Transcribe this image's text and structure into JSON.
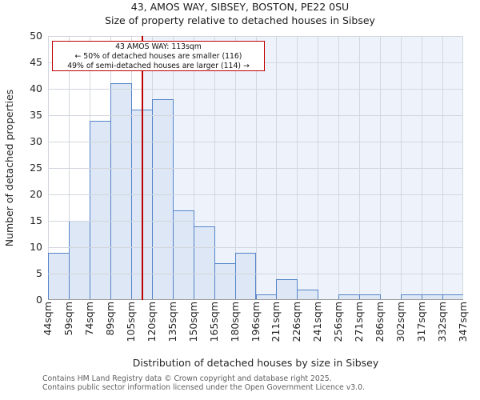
{
  "page": {
    "title": "43, AMOS WAY, SIBSEY, BOSTON, PE22 0SU",
    "subtitle": "Size of property relative to detached houses in Sibsey",
    "footer_line1": "Contains HM Land Registry data © Crown copyright and database right 2025.",
    "footer_line2": "Contains public sector information licensed under the Open Government Licence v3.0."
  },
  "annotation": {
    "line1": "43 AMOS WAY: 113sqm",
    "line2": "← 50% of detached houses are smaller (116)",
    "line3": "49% of semi-detached houses are larger (114) →"
  },
  "chart_data": {
    "type": "bar",
    "title": "43, AMOS WAY, SIBSEY, BOSTON, PE22 0SU",
    "subtitle": "Size of property relative to detached houses in Sibsey",
    "xlabel": "Distribution of detached houses by size in Sibsey",
    "ylabel": "Number of detached properties",
    "bin_edges_sqm": [
      44,
      59,
      74,
      89,
      105,
      120,
      135,
      150,
      165,
      180,
      196,
      211,
      226,
      241,
      256,
      271,
      286,
      302,
      317,
      332,
      347
    ],
    "bin_labels": [
      "44sqm",
      "59sqm",
      "74sqm",
      "89sqm",
      "105sqm",
      "120sqm",
      "135sqm",
      "150sqm",
      "165sqm",
      "180sqm",
      "196sqm",
      "211sqm",
      "226sqm",
      "241sqm",
      "256sqm",
      "271sqm",
      "286sqm",
      "302sqm",
      "317sqm",
      "332sqm",
      "347sqm"
    ],
    "values": [
      9,
      15,
      34,
      41,
      36,
      38,
      17,
      14,
      7,
      9,
      1,
      4,
      2,
      0,
      1,
      1,
      0,
      1,
      1,
      1
    ],
    "y_ticks": [
      0,
      5,
      10,
      15,
      20,
      25,
      30,
      35,
      40,
      45,
      50
    ],
    "ylim": [
      0,
      50
    ],
    "xlim_sqm": [
      44,
      347
    ],
    "marker_value_sqm": 113,
    "grid": true,
    "legend": "none",
    "colors": {
      "bar_fill": "#dde7f5",
      "bar_border": "#5585c8",
      "marker_line": "#c00000",
      "annotation_border": "#c00000",
      "grid_line": "#d2d6dd",
      "right_shade": "#eef2fb",
      "axis_line": "#9b9b9b"
    }
  }
}
